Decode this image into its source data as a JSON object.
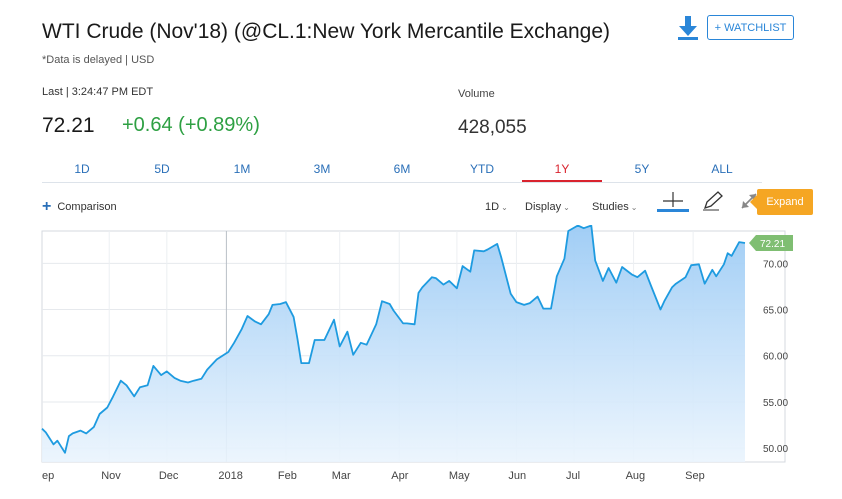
{
  "header": {
    "title": "WTI Crude (Nov'18) (@CL.1:New York Mercantile Exchange)",
    "delayed_note": "*Data is delayed | USD",
    "watchlist_label": "+ WATCHLIST",
    "download_icon": "download-icon"
  },
  "quote": {
    "last_label": "Last | 3:24:47 PM EDT",
    "last_price": "72.21",
    "change": "+0.64 (+0.89%)",
    "volume_label": "Volume",
    "volume_value": "428,055"
  },
  "colors": {
    "accent": "#2a6fb8",
    "positive": "#2ea043",
    "active_tab": "#d9232e",
    "expand": "#f5a623",
    "line": "#1e9be0",
    "last_tag": "#7fbe72"
  },
  "range_tabs": [
    {
      "label": "1D",
      "active": false
    },
    {
      "label": "5D",
      "active": false
    },
    {
      "label": "1M",
      "active": false
    },
    {
      "label": "3M",
      "active": false
    },
    {
      "label": "6M",
      "active": false
    },
    {
      "label": "YTD",
      "active": false
    },
    {
      "label": "1Y",
      "active": true
    },
    {
      "label": "5Y",
      "active": false
    },
    {
      "label": "ALL",
      "active": false
    }
  ],
  "toolbar": {
    "comparison_label": "Comparison",
    "interval_label": "1D",
    "display_label": "Display",
    "studies_label": "Studies",
    "expand_label": "Expand"
  },
  "chart_data": {
    "type": "area",
    "title": "",
    "xlabel": "",
    "ylabel": "",
    "x_tick_labels": [
      "ep",
      "Nov",
      "Dec",
      "2018",
      "Feb",
      "Mar",
      "Apr",
      "May",
      "Jun",
      "Jul",
      "Aug",
      "Sep"
    ],
    "y_ticks": [
      50,
      55,
      60,
      65,
      70
    ],
    "y_tick_labels": [
      "50.00",
      "55.00",
      "60.00",
      "65.00",
      "70.00"
    ],
    "ylim": [
      48.5,
      73.5
    ],
    "x_domain": [
      "2017-09-27",
      "2018-09-28"
    ],
    "grid": true,
    "last_value_label": "72.21",
    "series": [
      {
        "points": [
          [
            "2017-09-27",
            52.1
          ],
          [
            "2017-09-29",
            51.7
          ],
          [
            "2017-10-03",
            50.4
          ],
          [
            "2017-10-05",
            50.8
          ],
          [
            "2017-10-09",
            49.5
          ],
          [
            "2017-10-11",
            51.3
          ],
          [
            "2017-10-13",
            51.6
          ],
          [
            "2017-10-17",
            51.9
          ],
          [
            "2017-10-20",
            51.6
          ],
          [
            "2017-10-24",
            52.3
          ],
          [
            "2017-10-27",
            53.7
          ],
          [
            "2017-10-31",
            54.4
          ],
          [
            "2017-11-03",
            55.6
          ],
          [
            "2017-11-07",
            57.3
          ],
          [
            "2017-11-10",
            56.8
          ],
          [
            "2017-11-14",
            55.6
          ],
          [
            "2017-11-17",
            56.6
          ],
          [
            "2017-11-21",
            56.8
          ],
          [
            "2017-11-24",
            58.9
          ],
          [
            "2017-11-28",
            57.9
          ],
          [
            "2017-12-01",
            58.3
          ],
          [
            "2017-12-05",
            57.6
          ],
          [
            "2017-12-08",
            57.3
          ],
          [
            "2017-12-12",
            57.1
          ],
          [
            "2017-12-15",
            57.3
          ],
          [
            "2017-12-19",
            57.5
          ],
          [
            "2017-12-22",
            58.5
          ],
          [
            "2017-12-27",
            59.6
          ],
          [
            "2018-01-02",
            60.4
          ],
          [
            "2018-01-05",
            61.4
          ],
          [
            "2018-01-09",
            62.9
          ],
          [
            "2018-01-12",
            64.3
          ],
          [
            "2018-01-16",
            63.7
          ],
          [
            "2018-01-19",
            63.4
          ],
          [
            "2018-01-23",
            64.5
          ],
          [
            "2018-01-25",
            65.5
          ],
          [
            "2018-01-29",
            65.6
          ],
          [
            "2018-02-01",
            65.8
          ],
          [
            "2018-02-05",
            64.2
          ],
          [
            "2018-02-07",
            61.8
          ],
          [
            "2018-02-09",
            59.2
          ],
          [
            "2018-02-13",
            59.2
          ],
          [
            "2018-02-16",
            61.7
          ],
          [
            "2018-02-21",
            61.7
          ],
          [
            "2018-02-26",
            63.9
          ],
          [
            "2018-03-01",
            61.0
          ],
          [
            "2018-03-05",
            62.6
          ],
          [
            "2018-03-08",
            60.1
          ],
          [
            "2018-03-12",
            61.4
          ],
          [
            "2018-03-15",
            61.2
          ],
          [
            "2018-03-20",
            63.4
          ],
          [
            "2018-03-23",
            65.9
          ],
          [
            "2018-03-27",
            65.6
          ],
          [
            "2018-03-29",
            64.9
          ],
          [
            "2018-04-03",
            63.5
          ],
          [
            "2018-04-05",
            63.5
          ],
          [
            "2018-04-09",
            63.4
          ],
          [
            "2018-04-11",
            66.8
          ],
          [
            "2018-04-13",
            67.4
          ],
          [
            "2018-04-18",
            68.5
          ],
          [
            "2018-04-20",
            68.4
          ],
          [
            "2018-04-24",
            67.7
          ],
          [
            "2018-04-27",
            68.1
          ],
          [
            "2018-05-01",
            67.3
          ],
          [
            "2018-05-04",
            69.7
          ],
          [
            "2018-05-08",
            69.1
          ],
          [
            "2018-05-10",
            71.4
          ],
          [
            "2018-05-15",
            71.3
          ],
          [
            "2018-05-17",
            71.5
          ],
          [
            "2018-05-22",
            72.1
          ],
          [
            "2018-05-24",
            70.7
          ],
          [
            "2018-05-29",
            66.7
          ],
          [
            "2018-06-01",
            65.8
          ],
          [
            "2018-06-05",
            65.5
          ],
          [
            "2018-06-08",
            65.7
          ],
          [
            "2018-06-12",
            66.4
          ],
          [
            "2018-06-15",
            65.1
          ],
          [
            "2018-06-19",
            65.1
          ],
          [
            "2018-06-22",
            68.6
          ],
          [
            "2018-06-26",
            70.5
          ],
          [
            "2018-06-28",
            73.5
          ],
          [
            "2018-07-03",
            74.1
          ],
          [
            "2018-07-06",
            73.8
          ],
          [
            "2018-07-10",
            74.1
          ],
          [
            "2018-07-12",
            70.3
          ],
          [
            "2018-07-16",
            68.1
          ],
          [
            "2018-07-19",
            69.5
          ],
          [
            "2018-07-23",
            67.9
          ],
          [
            "2018-07-26",
            69.6
          ],
          [
            "2018-07-31",
            68.8
          ],
          [
            "2018-08-03",
            68.5
          ],
          [
            "2018-08-07",
            69.2
          ],
          [
            "2018-08-10",
            67.6
          ],
          [
            "2018-08-15",
            65.0
          ],
          [
            "2018-08-17",
            65.9
          ],
          [
            "2018-08-21",
            67.4
          ],
          [
            "2018-08-23",
            67.8
          ],
          [
            "2018-08-28",
            68.5
          ],
          [
            "2018-08-31",
            69.8
          ],
          [
            "2018-09-04",
            69.9
          ],
          [
            "2018-09-07",
            67.8
          ],
          [
            "2018-09-11",
            69.3
          ],
          [
            "2018-09-13",
            68.6
          ],
          [
            "2018-09-17",
            69.9
          ],
          [
            "2018-09-19",
            71.1
          ],
          [
            "2018-09-21",
            70.8
          ],
          [
            "2018-09-25",
            72.3
          ],
          [
            "2018-09-28",
            72.2
          ]
        ]
      }
    ]
  }
}
